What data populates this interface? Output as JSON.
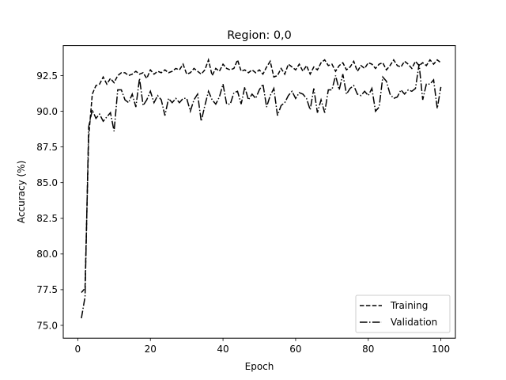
{
  "chart_data": {
    "type": "line",
    "title": "Region: 0,0",
    "xlabel": "Epoch",
    "ylabel": "Accuracy (%)",
    "xlim": [
      -4,
      104
    ],
    "ylim": [
      74.1,
      94.6
    ],
    "xticks": [
      0,
      20,
      40,
      60,
      80,
      100
    ],
    "yticks": [
      75.0,
      77.5,
      80.0,
      82.5,
      85.0,
      87.5,
      90.0,
      92.5
    ],
    "ytick_labels": [
      "75.0",
      "77.5",
      "80.0",
      "82.5",
      "85.0",
      "87.5",
      "90.0",
      "92.5"
    ],
    "grid": false,
    "legend_position": "bottom-right",
    "series": [
      {
        "name": "Training",
        "style": "dashed",
        "color": "#000000",
        "x": [
          1,
          2,
          3,
          4,
          5,
          6,
          7,
          8,
          9,
          10,
          11,
          12,
          13,
          14,
          15,
          16,
          17,
          18,
          19,
          20,
          21,
          22,
          23,
          24,
          25,
          26,
          27,
          28,
          29,
          30,
          31,
          32,
          33,
          34,
          35,
          36,
          37,
          38,
          39,
          40,
          41,
          42,
          43,
          44,
          45,
          46,
          47,
          48,
          49,
          50,
          51,
          52,
          53,
          54,
          55,
          56,
          57,
          58,
          59,
          60,
          61,
          62,
          63,
          64,
          65,
          66,
          67,
          68,
          69,
          70,
          71,
          72,
          73,
          74,
          75,
          76,
          77,
          78,
          79,
          80,
          81,
          82,
          83,
          84,
          85,
          86,
          87,
          88,
          89,
          90,
          91,
          92,
          93,
          94,
          95,
          96,
          97,
          98,
          99,
          100
        ],
        "values": [
          77.3,
          77.6,
          88.2,
          91.2,
          91.8,
          91.9,
          92.4,
          91.9,
          92.3,
          92.0,
          92.5,
          92.7,
          92.7,
          92.5,
          92.6,
          92.8,
          92.6,
          92.7,
          92.3,
          92.9,
          92.6,
          92.8,
          92.7,
          92.9,
          92.7,
          92.8,
          93.0,
          92.9,
          93.3,
          92.6,
          92.7,
          93.0,
          92.8,
          92.6,
          92.9,
          93.6,
          92.5,
          93.0,
          92.8,
          93.3,
          93.0,
          92.9,
          93.0,
          93.6,
          92.8,
          92.9,
          92.7,
          92.9,
          92.7,
          92.9,
          92.6,
          93.1,
          93.5,
          92.4,
          92.5,
          93.0,
          92.6,
          93.3,
          93.1,
          92.9,
          93.3,
          92.8,
          93.2,
          92.6,
          93.1,
          92.9,
          93.4,
          93.6,
          93.2,
          93.3,
          92.8,
          93.2,
          93.4,
          92.9,
          93.1,
          93.5,
          92.8,
          93.2,
          93.0,
          93.4,
          93.3,
          93.0,
          93.3,
          93.4,
          92.9,
          93.2,
          93.6,
          93.2,
          93.1,
          93.5,
          93.3,
          93.0,
          93.5,
          93.2,
          93.4,
          93.2,
          93.6,
          93.3,
          93.6,
          93.4
        ]
      },
      {
        "name": "Validation",
        "style": "dashdot",
        "color": "#000000",
        "x": [
          1,
          2,
          3,
          4,
          5,
          6,
          7,
          8,
          9,
          10,
          11,
          12,
          13,
          14,
          15,
          16,
          17,
          18,
          19,
          20,
          21,
          22,
          23,
          24,
          25,
          26,
          27,
          28,
          29,
          30,
          31,
          32,
          33,
          34,
          35,
          36,
          37,
          38,
          39,
          40,
          41,
          42,
          43,
          44,
          45,
          46,
          47,
          48,
          49,
          50,
          51,
          52,
          53,
          54,
          55,
          56,
          57,
          58,
          59,
          60,
          61,
          62,
          63,
          64,
          65,
          66,
          67,
          68,
          69,
          70,
          71,
          72,
          73,
          74,
          75,
          76,
          77,
          78,
          79,
          80,
          81,
          82,
          83,
          84,
          85,
          86,
          87,
          88,
          89,
          90,
          91,
          92,
          93,
          94,
          95,
          96,
          97,
          98,
          99,
          100
        ],
        "values": [
          75.5,
          77.0,
          88.9,
          90.1,
          89.5,
          89.8,
          89.3,
          89.6,
          89.9,
          88.6,
          91.5,
          91.5,
          90.8,
          90.6,
          91.2,
          90.3,
          92.3,
          90.4,
          90.8,
          91.4,
          90.6,
          91.1,
          90.8,
          89.7,
          90.9,
          90.6,
          90.9,
          90.6,
          90.9,
          90.9,
          90.0,
          90.8,
          91.2,
          89.3,
          90.4,
          91.4,
          90.8,
          90.5,
          91.0,
          91.9,
          90.5,
          90.5,
          91.3,
          91.4,
          90.5,
          91.7,
          90.8,
          91.2,
          90.9,
          91.5,
          91.9,
          90.3,
          91.1,
          91.6,
          89.7,
          90.4,
          90.6,
          91.1,
          91.4,
          90.9,
          91.3,
          91.2,
          90.9,
          90.1,
          91.6,
          89.9,
          90.8,
          89.9,
          91.5,
          91.5,
          92.5,
          91.5,
          92.6,
          91.2,
          91.6,
          91.8,
          91.2,
          91.1,
          91.4,
          91.1,
          91.6,
          90.0,
          90.3,
          92.4,
          92.1,
          91.2,
          90.9,
          91.0,
          91.5,
          91.2,
          91.5,
          91.4,
          91.6,
          93.3,
          90.8,
          91.9,
          91.9,
          92.2,
          90.2,
          91.7
        ]
      }
    ]
  }
}
